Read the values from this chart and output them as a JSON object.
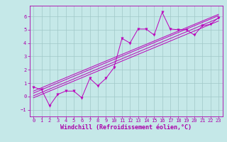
{
  "xlabel": "Windchill (Refroidissement éolien,°C)",
  "bg_color": "#c5e8e8",
  "line_color": "#bb00bb",
  "grid_color": "#a0c8c8",
  "text_color": "#aa00aa",
  "scatter_x": [
    0,
    1,
    2,
    3,
    4,
    5,
    6,
    7,
    8,
    9,
    10,
    11,
    12,
    13,
    14,
    15,
    16,
    17,
    18,
    19,
    20,
    21,
    22,
    23
  ],
  "scatter_y": [
    0.7,
    0.5,
    -0.7,
    0.15,
    0.4,
    0.4,
    -0.1,
    1.35,
    0.8,
    1.35,
    2.15,
    4.35,
    4.0,
    5.05,
    5.05,
    4.6,
    6.3,
    5.05,
    5.0,
    5.0,
    4.6,
    5.3,
    5.4,
    5.9
  ],
  "reg_lines": [
    {
      "x": [
        0,
        23
      ],
      "y": [
        0.25,
        6.05
      ]
    },
    {
      "x": [
        0,
        23
      ],
      "y": [
        -0.1,
        5.65
      ]
    },
    {
      "x": [
        0,
        23
      ],
      "y": [
        0.05,
        5.85
      ]
    },
    {
      "x": [
        0,
        23
      ],
      "y": [
        0.4,
        6.15
      ]
    }
  ],
  "xlim": [
    -0.5,
    23.5
  ],
  "ylim": [
    -1.5,
    6.8
  ],
  "xticks": [
    0,
    1,
    2,
    3,
    4,
    5,
    6,
    7,
    8,
    9,
    10,
    11,
    12,
    13,
    14,
    15,
    16,
    17,
    18,
    19,
    20,
    21,
    22,
    23
  ],
  "yticks": [
    -1,
    0,
    1,
    2,
    3,
    4,
    5,
    6
  ],
  "tick_fontsize": 5.0,
  "xlabel_fontsize": 6.0,
  "marker": "v",
  "markersize": 2.5,
  "linewidth": 0.7
}
